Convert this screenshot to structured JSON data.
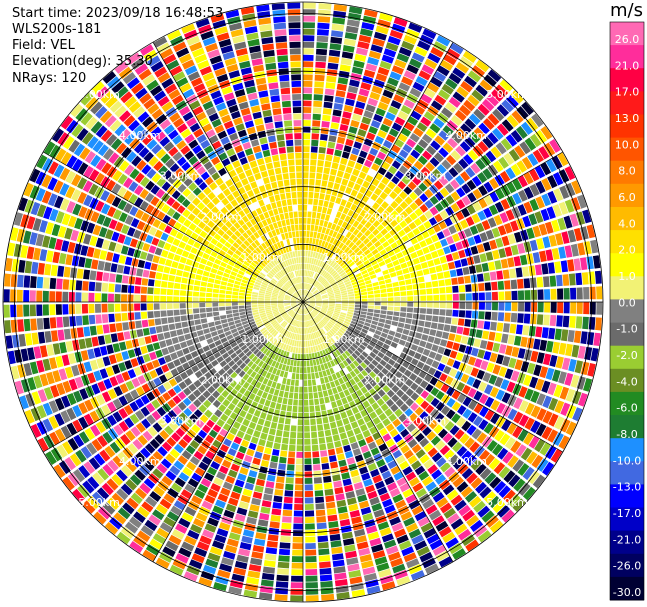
{
  "header": {
    "start_time": "Start time: 2023/09/18 16:48:53",
    "instrument": "WLS200s-181",
    "field": "Field: VEL",
    "elevation": "Elevation(deg): 35.30",
    "nrays": "NRays: 120"
  },
  "colorbar": {
    "unit": "m/s",
    "ticks": [
      "26.0",
      "21.0",
      "17.0",
      "13.0",
      "10.0",
      "8.0",
      "6.0",
      "4.0",
      "2.0",
      "1.0",
      "0.0",
      "-1.0",
      "-2.0",
      "-4.0",
      "-6.0",
      "-8.0",
      "-10.0",
      "-13.0",
      "-17.0",
      "-21.0",
      "-26.0",
      "-30.0"
    ],
    "colors": [
      "#ff69b4",
      "#ff2d9b",
      "#ff0044",
      "#ff1a1a",
      "#ff3300",
      "#ff5500",
      "#ff7a00",
      "#ff9900",
      "#ffbb00",
      "#ffe000",
      "#ffff00",
      "#f2f275",
      "#808080",
      "#6b6b6b",
      "#9acd32",
      "#6b8e23",
      "#228b22",
      "#1e7d32",
      "#1e90ff",
      "#4169e1",
      "#0000ff",
      "#0000c8",
      "#00008b",
      "#000060",
      "#000033"
    ]
  },
  "chart_data": {
    "type": "ppi",
    "field": "VEL",
    "units": "m/s",
    "n_rays": 120,
    "vmin": -30.0,
    "vmax": 26.0,
    "range_rings_km": [
      1.0,
      2.0,
      3.0,
      4.0,
      5.0
    ],
    "range_ring_labels": [
      "1.00km",
      "2.00km",
      "3.00km",
      "4.00km",
      "5.00km"
    ],
    "azimuth_spokes_deg": [
      0,
      30,
      60,
      90,
      120,
      150,
      180,
      210,
      240,
      270,
      300,
      330
    ],
    "velocity_pattern": {
      "near_north_m_s": 4.0,
      "near_south_m_s": -6.0,
      "near_center_m_s": 0.0,
      "clean_range_km": 2.7,
      "noise_beyond_km": 2.7
    }
  }
}
